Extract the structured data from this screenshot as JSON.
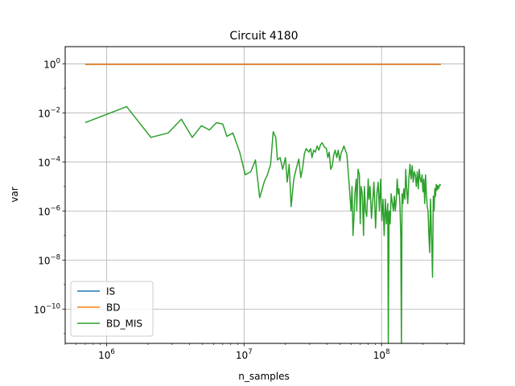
{
  "chart_data": {
    "type": "line",
    "title": "Circuit 4180",
    "xlabel": "n_samples",
    "ylabel": "var",
    "xscale": "log",
    "yscale": "log",
    "xlim": [
      500000,
      400000000
    ],
    "ylim": [
      4e-12,
      5
    ],
    "grid": true,
    "legend_position": "lower-left",
    "x_ticks": [
      {
        "base": "10",
        "exp": "6",
        "value": 1000000
      },
      {
        "base": "10",
        "exp": "7",
        "value": 10000000
      },
      {
        "base": "10",
        "exp": "8",
        "value": 100000000
      }
    ],
    "y_ticks": [
      {
        "base": "10",
        "exp": "0",
        "value": 1
      },
      {
        "base": "10",
        "exp": "−2",
        "value": 0.01
      },
      {
        "base": "10",
        "exp": "−4",
        "value": 0.0001
      },
      {
        "base": "10",
        "exp": "−6",
        "value": 1e-06
      },
      {
        "base": "10",
        "exp": "−8",
        "value": 1e-08
      },
      {
        "base": "10",
        "exp": "−10",
        "value": 1e-10
      }
    ],
    "series": [
      {
        "name": "IS",
        "color": "#1f77b4",
        "points": [
          [
            700000,
            0.95
          ],
          [
            270000000,
            0.95
          ]
        ]
      },
      {
        "name": "BD",
        "color": "#ff7f0e",
        "points": [
          [
            700000,
            0.95
          ],
          [
            270000000,
            0.95
          ]
        ]
      },
      {
        "name": "BD_MIS",
        "color": "#2ca02c",
        "points": [
          [
            700000,
            0.004
          ],
          [
            1400000,
            0.018
          ],
          [
            2100000,
            0.001
          ],
          [
            2800000,
            0.0015
          ],
          [
            3500000,
            0.0055
          ],
          [
            4200000,
            0.001
          ],
          [
            4900000,
            0.003
          ],
          [
            5600000,
            0.002
          ],
          [
            6300000,
            0.004
          ],
          [
            7000000,
            0.0035
          ],
          [
            7500000,
            0.0011
          ],
          [
            8300000,
            0.0015
          ],
          [
            9300000,
            0.00025
          ],
          [
            10200000,
            3e-05
          ],
          [
            11200000,
            4e-05
          ],
          [
            12100000,
            0.00012
          ],
          [
            13000000,
            3.5e-06
          ],
          [
            14100000,
            1.7e-05
          ],
          [
            14800000,
            3e-05
          ],
          [
            15600000,
            8e-05
          ],
          [
            16300000,
            0.0017
          ],
          [
            17000000,
            0.001
          ],
          [
            17500000,
            0.00012
          ],
          [
            18300000,
            0.00015
          ],
          [
            19100000,
            5e-05
          ],
          [
            20000000,
            0.00015
          ],
          [
            20600000,
            1.5e-05
          ],
          [
            21300000,
            8e-05
          ],
          [
            22000000,
            1.5e-06
          ],
          [
            23000000,
            2e-05
          ],
          [
            23900000,
            5e-05
          ],
          [
            25000000,
            0.00013
          ],
          [
            25900000,
            2.3e-05
          ],
          [
            26700000,
            6e-05
          ],
          [
            27500000,
            0.00022
          ],
          [
            28300000,
            0.00035
          ],
          [
            29600000,
            0.00025
          ],
          [
            30500000,
            0.00035
          ],
          [
            31200000,
            0.00015
          ],
          [
            32100000,
            0.0003
          ],
          [
            33000000,
            0.00025
          ],
          [
            34000000,
            0.00045
          ],
          [
            35000000,
            0.0003
          ],
          [
            36000000,
            0.0005
          ],
          [
            37000000,
            0.0006
          ],
          [
            38500000,
            0.0004
          ],
          [
            39700000,
            0.00035
          ],
          [
            40700000,
            0.00015
          ],
          [
            41600000,
            0.00025
          ],
          [
            42700000,
            5e-05
          ],
          [
            43800000,
            7e-05
          ],
          [
            45000000,
            0.0002
          ],
          [
            46000000,
            0.0003
          ],
          [
            47300000,
            0.00015
          ],
          [
            48400000,
            0.0003
          ],
          [
            49700000,
            0.00011
          ],
          [
            51000000,
            0.00025
          ],
          [
            52000000,
            0.0003
          ],
          [
            53300000,
            0.00045
          ],
          [
            54500000,
            0.0003
          ],
          [
            56000000,
            0.0002
          ],
          [
            57000000,
            5e-05
          ],
          [
            58300000,
            1e-05
          ],
          [
            60000000,
            1e-06
          ],
          [
            61000000,
            1e-05
          ],
          [
            62000000,
            1e-07
          ],
          [
            63000000,
            5e-07
          ],
          [
            64000000,
            5e-06
          ],
          [
            65500000,
            2e-05
          ],
          [
            66000000,
            1e-06
          ],
          [
            67500000,
            5e-05
          ],
          [
            69000000,
            3e-05
          ],
          [
            70000000,
            3e-07
          ],
          [
            71000000,
            1e-05
          ],
          [
            72500000,
            5e-06
          ],
          [
            74000000,
            1e-07
          ],
          [
            75000000,
            1e-05
          ],
          [
            76500000,
            1e-06
          ],
          [
            78000000,
            6e-07
          ],
          [
            80000000,
            2e-05
          ],
          [
            81000000,
            3e-06
          ],
          [
            82500000,
            1e-05
          ],
          [
            84500000,
            5e-07
          ],
          [
            86000000,
            2e-06
          ],
          [
            88000000,
            1.5e-05
          ],
          [
            89000000,
            3e-06
          ],
          [
            90500000,
            2e-07
          ],
          [
            92500000,
            5e-06
          ],
          [
            94500000,
            1.5e-05
          ],
          [
            96500000,
            1e-06
          ],
          [
            98500000,
            2e-05
          ],
          [
            100500000,
            4e-07
          ],
          [
            102500000,
            3e-06
          ],
          [
            104500000,
            1e-07
          ],
          [
            106500000,
            3e-06
          ],
          [
            108500000,
            3e-07
          ],
          [
            110000000,
            1e-06
          ],
          [
            111000000,
            2e-06
          ],
          [
            112000000,
            4e-12
          ],
          [
            113500000,
            1e-06
          ],
          [
            115500000,
            3e-07
          ],
          [
            117500000,
            5e-06
          ],
          [
            120000000,
            2e-06
          ],
          [
            122000000,
            1e-06
          ],
          [
            124000000,
            4e-06
          ],
          [
            126000000,
            1e-06
          ],
          [
            128000000,
            3e-06
          ],
          [
            130000000,
            2e-05
          ],
          [
            132000000,
            5e-06
          ],
          [
            134000000,
            8e-06
          ],
          [
            136000000,
            2e-06
          ],
          [
            138000000,
            1e-07
          ],
          [
            139500000,
            4e-12
          ],
          [
            141000000,
            5e-06
          ],
          [
            143000000,
            2e-06
          ],
          [
            145000000,
            8e-06
          ],
          [
            148000000,
            3e-06
          ],
          [
            150000000,
            5e-05
          ],
          [
            152000000,
            1e-05
          ],
          [
            155000000,
            2e-06
          ],
          [
            158000000,
            2e-05
          ],
          [
            161000000,
            8e-05
          ],
          [
            164000000,
            2e-05
          ],
          [
            167000000,
            7e-05
          ],
          [
            170000000,
            1.5e-05
          ],
          [
            173000000,
            4e-05
          ],
          [
            176000000,
            3e-05
          ],
          [
            179000000,
            1e-05
          ],
          [
            182000000,
            4e-05
          ],
          [
            185000000,
            8e-06
          ],
          [
            188000000,
            5e-05
          ],
          [
            191000000,
            2e-05
          ],
          [
            194000000,
            1.5e-05
          ],
          [
            197000000,
            3e-05
          ],
          [
            200000000,
            6e-06
          ],
          [
            203000000,
            2e-05
          ],
          [
            206000000,
            2e-06
          ],
          [
            209000000,
            3e-05
          ],
          [
            212000000,
            5e-06
          ],
          [
            215000000,
            1.5e-06
          ],
          [
            218000000,
            1e-06
          ],
          [
            221000000,
            1e-07
          ],
          [
            224000000,
            2e-08
          ],
          [
            227000000,
            3e-06
          ],
          [
            230000000,
            2e-07
          ],
          [
            232000000,
            4e-08
          ],
          [
            235000000,
            2e-09
          ],
          [
            238000000,
            4e-06
          ],
          [
            241000000,
            1e-06
          ],
          [
            244000000,
            8e-06
          ],
          [
            247000000,
            4e-06
          ],
          [
            250000000,
            1.2e-05
          ],
          [
            253000000,
            7e-06
          ],
          [
            256000000,
            1.1e-05
          ],
          [
            260000000,
            8e-06
          ],
          [
            265000000,
            1.2e-05
          ],
          [
            270000000,
            1.1e-05
          ]
        ]
      }
    ]
  }
}
